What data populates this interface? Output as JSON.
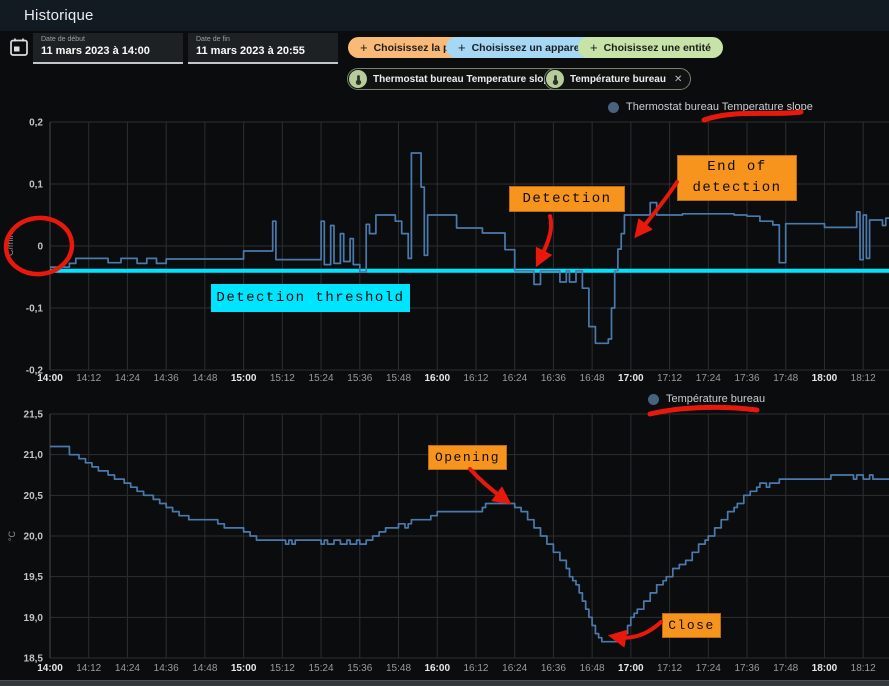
{
  "app": {
    "title": "Historique"
  },
  "toolbar": {
    "start_date": {
      "label": "Date de début",
      "value": "11 mars 2023 à 14:00"
    },
    "end_date": {
      "label": "Date de fin",
      "value": "11 mars 2023 à 20:55"
    },
    "plus": "+",
    "buttons": [
      {
        "label": "Choisissez la pièce",
        "color": "#f9ba77"
      },
      {
        "label": "Choisissez un appareil",
        "color": "#a6d7f5"
      },
      {
        "label": "Choisissez une entité",
        "color": "#c8e3a8"
      }
    ],
    "chips": [
      {
        "label": "Thermostat bureau Temperature slope",
        "close": "✕"
      },
      {
        "label": "Température bureau",
        "close": "✕"
      }
    ]
  },
  "colors": {
    "appbar": "#131b22",
    "background": "#0b0c0e",
    "grid": "#2c2e30",
    "axis_text": "#9b9b9b",
    "axis_text_bold": "#e8e8e8",
    "ytick_text": "#c4c4c4",
    "line_blue": "#4a7aab",
    "legend_dot": "#47637e"
  },
  "annotations": {
    "threshold_label": "Detection threshold",
    "detection_label": "Detection",
    "end_detection_label": "End of detection",
    "opening_label": "Opening",
    "close_label": "Close",
    "highlight_orange": "#f7941e",
    "highlight_cyan": "#00e5ff",
    "marker_red": "#e8190c"
  },
  "chart_data": [
    {
      "type": "line",
      "step": true,
      "name": "Thermostat bureau Temperature slope",
      "color": "#4a7aab",
      "ylabel": "°C/min",
      "ylim": [
        -0.2,
        0.2
      ],
      "xlim": [
        0,
        260
      ],
      "x_tick_minutes": 12,
      "threshold": -0.04,
      "yticks": [
        {
          "label": "0,2",
          "v": 0.2
        },
        {
          "label": "0,1",
          "v": 0.1
        },
        {
          "label": "0",
          "v": 0
        },
        {
          "label": "-0,1",
          "v": -0.1
        },
        {
          "label": "-0,2",
          "v": -0.2
        }
      ],
      "x_tick_labels": [
        "14:00",
        "14:12",
        "14:24",
        "14:36",
        "14:48",
        "15:00",
        "15:12",
        "15:24",
        "15:36",
        "15:48",
        "16:00",
        "16:12",
        "16:24",
        "16:36",
        "16:48",
        "17:00",
        "17:12",
        "17:24",
        "17:36",
        "17:48",
        "18:00",
        "18:12"
      ],
      "series": [
        [
          0,
          -0.034
        ],
        [
          6,
          -0.028
        ],
        [
          8,
          -0.02
        ],
        [
          18,
          -0.027
        ],
        [
          22,
          -0.02
        ],
        [
          27,
          -0.028
        ],
        [
          30,
          -0.02
        ],
        [
          33,
          -0.028
        ],
        [
          36,
          -0.021
        ],
        [
          58,
          -0.021
        ],
        [
          60,
          -0.008
        ],
        [
          68,
          -0.008
        ],
        [
          69,
          0.04
        ],
        [
          70,
          -0.022
        ],
        [
          82,
          -0.022
        ],
        [
          84,
          0.04
        ],
        [
          85,
          -0.03
        ],
        [
          87,
          0.033
        ],
        [
          88,
          -0.028
        ],
        [
          90,
          0.02
        ],
        [
          91,
          -0.025
        ],
        [
          93,
          0.012
        ],
        [
          94,
          -0.03
        ],
        [
          96,
          -0.042
        ],
        [
          98,
          0.035
        ],
        [
          99,
          0.02
        ],
        [
          101,
          0.05
        ],
        [
          107,
          0.04
        ],
        [
          109,
          0.02
        ],
        [
          111,
          -0.02
        ],
        [
          112,
          0.15
        ],
        [
          115,
          0.095
        ],
        [
          116,
          -0.015
        ],
        [
          117,
          0.05
        ],
        [
          126,
          0.029
        ],
        [
          134,
          0.021
        ],
        [
          141,
          -0.006
        ],
        [
          144,
          -0.04
        ],
        [
          150,
          -0.062
        ],
        [
          152,
          -0.04
        ],
        [
          158,
          -0.058
        ],
        [
          160,
          -0.04
        ],
        [
          161,
          -0.058
        ],
        [
          163,
          -0.04
        ],
        [
          165,
          -0.068
        ],
        [
          167,
          -0.13
        ],
        [
          169,
          -0.157
        ],
        [
          173,
          -0.15
        ],
        [
          174,
          -0.1
        ],
        [
          175,
          -0.04
        ],
        [
          176,
          -0.005
        ],
        [
          177,
          0.02
        ],
        [
          178,
          0.05
        ],
        [
          185,
          0.05
        ],
        [
          186,
          0.07
        ],
        [
          188,
          0.05
        ],
        [
          196,
          0.052
        ],
        [
          212,
          0.05
        ],
        [
          216,
          0.048
        ],
        [
          220,
          0.04
        ],
        [
          224,
          0.034
        ],
        [
          226,
          -0.027
        ],
        [
          228,
          0.036
        ],
        [
          240,
          0.03
        ],
        [
          249,
          0.03
        ],
        [
          250,
          0.055
        ],
        [
          251,
          -0.022
        ],
        [
          252,
          0.05
        ],
        [
          253,
          -0.02
        ],
        [
          254,
          0.042
        ],
        [
          258,
          0.033
        ],
        [
          259,
          0.045
        ],
        [
          260,
          0.045
        ]
      ]
    },
    {
      "type": "line",
      "step": true,
      "name": "Température bureau",
      "color": "#4a7aab",
      "ylabel": "°C",
      "ylim": [
        18.5,
        21.5
      ],
      "xlim": [
        0,
        260
      ],
      "x_tick_minutes": 12,
      "yticks": [
        {
          "label": "21,5",
          "v": 21.5
        },
        {
          "label": "21,0",
          "v": 21.0
        },
        {
          "label": "20,5",
          "v": 20.5
        },
        {
          "label": "20,0",
          "v": 20.0
        },
        {
          "label": "19,5",
          "v": 19.5
        },
        {
          "label": "19,0",
          "v": 19.0
        },
        {
          "label": "18,5",
          "v": 18.5
        }
      ],
      "x_tick_labels": [
        "14:00",
        "14:12",
        "14:24",
        "14:36",
        "14:48",
        "15:00",
        "15:12",
        "15:24",
        "15:36",
        "15:48",
        "16:00",
        "16:12",
        "16:24",
        "16:36",
        "16:48",
        "17:00",
        "17:12",
        "17:24",
        "17:36",
        "17:48",
        "18:00",
        "18:12"
      ],
      "series": [
        [
          0,
          21.1
        ],
        [
          6,
          21.0
        ],
        [
          9,
          20.95
        ],
        [
          11,
          20.9
        ],
        [
          13,
          20.85
        ],
        [
          15,
          20.8
        ],
        [
          18,
          20.75
        ],
        [
          20,
          20.7
        ],
        [
          23,
          20.65
        ],
        [
          25,
          20.6
        ],
        [
          27,
          20.55
        ],
        [
          29,
          20.5
        ],
        [
          32,
          20.45
        ],
        [
          34,
          20.4
        ],
        [
          36,
          20.35
        ],
        [
          38,
          20.3
        ],
        [
          40,
          20.25
        ],
        [
          43,
          20.2
        ],
        [
          52,
          20.15
        ],
        [
          54,
          20.1
        ],
        [
          60,
          20.05
        ],
        [
          62,
          20.0
        ],
        [
          64,
          19.95
        ],
        [
          73,
          19.9
        ],
        [
          74,
          19.95
        ],
        [
          75,
          19.9
        ],
        [
          76,
          19.95
        ],
        [
          84,
          19.9
        ],
        [
          85,
          19.95
        ],
        [
          86,
          19.9
        ],
        [
          88,
          19.95
        ],
        [
          90,
          19.9
        ],
        [
          92,
          19.95
        ],
        [
          93,
          19.9
        ],
        [
          95,
          19.95
        ],
        [
          96,
          19.9
        ],
        [
          98,
          19.95
        ],
        [
          100,
          20.0
        ],
        [
          102,
          20.05
        ],
        [
          104,
          20.1
        ],
        [
          108,
          20.15
        ],
        [
          110,
          20.1
        ],
        [
          111,
          20.15
        ],
        [
          112,
          20.2
        ],
        [
          118,
          20.25
        ],
        [
          120,
          20.3
        ],
        [
          134,
          20.35
        ],
        [
          135,
          20.4
        ],
        [
          144,
          20.35
        ],
        [
          146,
          20.3
        ],
        [
          148,
          20.2
        ],
        [
          150,
          20.1
        ],
        [
          152,
          20.0
        ],
        [
          154,
          19.9
        ],
        [
          156,
          19.8
        ],
        [
          158,
          19.7
        ],
        [
          160,
          19.6
        ],
        [
          161,
          19.5
        ],
        [
          162,
          19.45
        ],
        [
          163,
          19.4
        ],
        [
          164,
          19.3
        ],
        [
          165,
          19.2
        ],
        [
          166,
          19.1
        ],
        [
          167,
          19.0
        ],
        [
          168,
          18.9
        ],
        [
          169,
          18.8
        ],
        [
          170,
          18.75
        ],
        [
          171,
          18.7
        ],
        [
          176,
          18.7
        ],
        [
          177,
          18.75
        ],
        [
          178,
          18.8
        ],
        [
          179,
          18.9
        ],
        [
          180,
          19.0
        ],
        [
          181,
          19.05
        ],
        [
          182,
          19.1
        ],
        [
          184,
          19.2
        ],
        [
          186,
          19.3
        ],
        [
          188,
          19.4
        ],
        [
          190,
          19.45
        ],
        [
          191,
          19.5
        ],
        [
          193,
          19.6
        ],
        [
          195,
          19.65
        ],
        [
          197,
          19.7
        ],
        [
          199,
          19.8
        ],
        [
          201,
          19.9
        ],
        [
          203,
          19.95
        ],
        [
          204,
          20.0
        ],
        [
          206,
          20.1
        ],
        [
          208,
          20.2
        ],
        [
          210,
          20.3
        ],
        [
          212,
          20.35
        ],
        [
          213,
          20.4
        ],
        [
          215,
          20.5
        ],
        [
          217,
          20.55
        ],
        [
          219,
          20.6
        ],
        [
          220,
          20.65
        ],
        [
          222,
          20.6
        ],
        [
          223,
          20.65
        ],
        [
          226,
          20.7
        ],
        [
          242,
          20.75
        ],
        [
          249,
          20.7
        ],
        [
          250,
          20.75
        ],
        [
          252,
          20.7
        ],
        [
          254,
          20.75
        ],
        [
          255,
          20.7
        ],
        [
          260,
          20.7
        ]
      ]
    }
  ]
}
